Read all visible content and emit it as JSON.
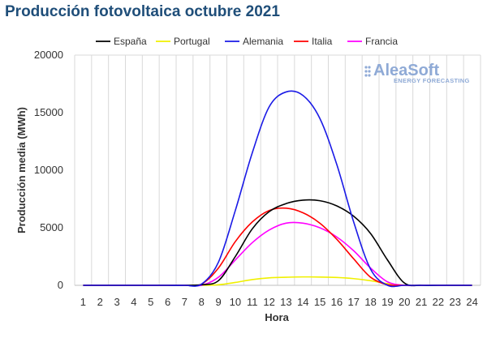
{
  "title": "Producción fotovoltaica octubre 2021",
  "logo": {
    "name": "AleaSoft",
    "tagline": "ENERGY FORECASTING",
    "color": "#8faad6"
  },
  "chart_data": {
    "type": "line",
    "title": "Producción fotovoltaica octubre 2021",
    "xlabel": "Hora",
    "ylabel": "Producción media (MWh)",
    "ylim": [
      0,
      20000
    ],
    "yticks": [
      0,
      5000,
      10000,
      15000,
      20000
    ],
    "x": [
      1,
      2,
      3,
      4,
      5,
      6,
      7,
      8,
      9,
      10,
      11,
      12,
      13,
      14,
      15,
      16,
      17,
      18,
      19,
      20,
      21,
      22,
      23,
      24
    ],
    "grid": "vertical",
    "legend_position": "top",
    "series": [
      {
        "name": "España",
        "color": "#000000",
        "values": [
          0,
          0,
          0,
          0,
          0,
          0,
          0,
          50,
          400,
          2500,
          4900,
          6400,
          7100,
          7400,
          7350,
          6900,
          6000,
          4500,
          2200,
          200,
          0,
          0,
          0,
          0
        ]
      },
      {
        "name": "Portugal",
        "color": "#f0f000",
        "values": [
          0,
          0,
          0,
          0,
          0,
          0,
          0,
          0,
          50,
          250,
          500,
          650,
          700,
          730,
          720,
          680,
          580,
          400,
          150,
          10,
          0,
          0,
          0,
          0
        ]
      },
      {
        "name": "Alemania",
        "color": "#1a1ae6",
        "values": [
          0,
          0,
          0,
          0,
          0,
          0,
          0,
          100,
          2000,
          6500,
          11500,
          15500,
          16800,
          16500,
          14500,
          10500,
          5500,
          1400,
          0,
          0,
          0,
          0,
          0,
          0
        ]
      },
      {
        "name": "Italia",
        "color": "#ff0000",
        "values": [
          0,
          0,
          0,
          0,
          0,
          0,
          0,
          100,
          1500,
          3800,
          5500,
          6500,
          6700,
          6300,
          5400,
          4000,
          2300,
          700,
          50,
          0,
          0,
          0,
          0,
          0
        ]
      },
      {
        "name": "Francia",
        "color": "#ff00ff",
        "values": [
          0,
          0,
          0,
          0,
          0,
          0,
          0,
          0,
          700,
          2200,
          3700,
          4800,
          5400,
          5400,
          5000,
          4200,
          3000,
          1500,
          300,
          0,
          0,
          0,
          0,
          0
        ]
      }
    ]
  }
}
